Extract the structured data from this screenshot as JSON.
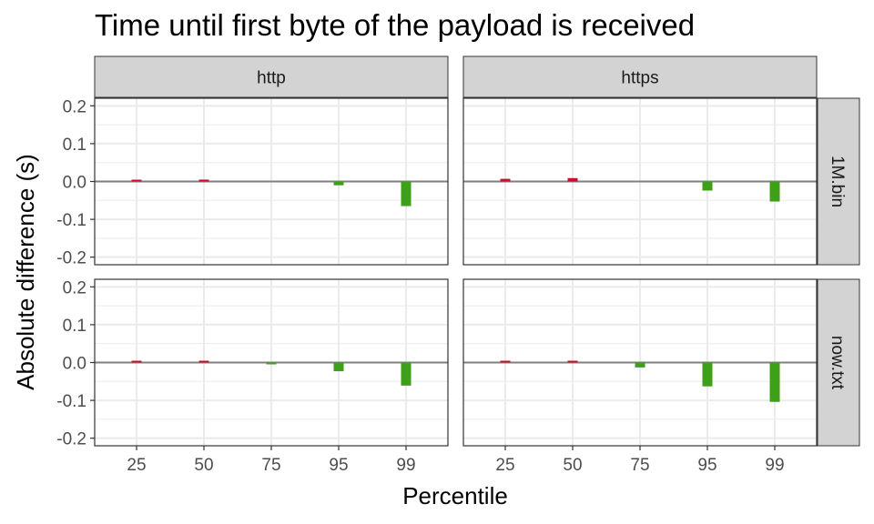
{
  "chart_data": {
    "type": "bar",
    "title": "Time until first byte of the payload is received",
    "xlabel": "Percentile",
    "ylabel": "Absolute difference (s)",
    "categories": [
      "25",
      "50",
      "75",
      "95",
      "99"
    ],
    "ylim": [
      -0.22,
      0.22
    ],
    "yticks": [
      "-0.2",
      "-0.1",
      "0.0",
      "0.1",
      "0.2"
    ],
    "ytick_values": [
      -0.2,
      -0.1,
      0.0,
      0.1,
      0.2
    ],
    "grid": true,
    "facet_columns": [
      "http",
      "https"
    ],
    "facet_rows": [
      "1M.bin",
      "now.txt"
    ],
    "colors": {
      "positive": "#c8102e",
      "negative": "#3da018",
      "zero_line": "#7f7f7f",
      "strip_fill": "#d3d3d3",
      "grid": "#ebebeb"
    },
    "panels": [
      {
        "column": "http",
        "row": "1M.bin",
        "values": [
          0.004,
          0.005,
          0.0,
          -0.01,
          -0.065
        ]
      },
      {
        "column": "https",
        "row": "1M.bin",
        "values": [
          0.007,
          0.009,
          0.0,
          -0.024,
          -0.053
        ]
      },
      {
        "column": "http",
        "row": "now.txt",
        "values": [
          0.002,
          0.002,
          -0.004,
          -0.023,
          -0.061
        ]
      },
      {
        "column": "https",
        "row": "now.txt",
        "values": [
          0.003,
          0.001,
          -0.013,
          -0.063,
          -0.104
        ]
      }
    ]
  }
}
